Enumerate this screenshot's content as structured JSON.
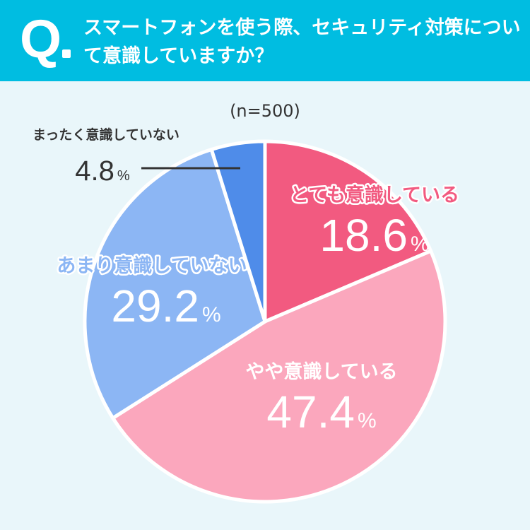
{
  "header": {
    "q_letter": "Q",
    "question": "スマートフォンを使う際、セキュリティ対策について意識していますか？"
  },
  "chart_data": {
    "type": "pie",
    "sample_size": "(n=500)",
    "percent_unit": "%",
    "slices": [
      {
        "label": "とても意識している",
        "value": 18.6,
        "display": "18.6",
        "color": "#f25a80"
      },
      {
        "label": "やや意識している",
        "value": 47.4,
        "display": "47.4",
        "color": "#fba7bd"
      },
      {
        "label": "あまり意識していない",
        "value": 29.2,
        "display": "29.2",
        "color": "#8cb6f4"
      },
      {
        "label": "まったく意識していない",
        "value": 4.8,
        "display": "4.8",
        "color": "#4f8ce9"
      }
    ]
  }
}
